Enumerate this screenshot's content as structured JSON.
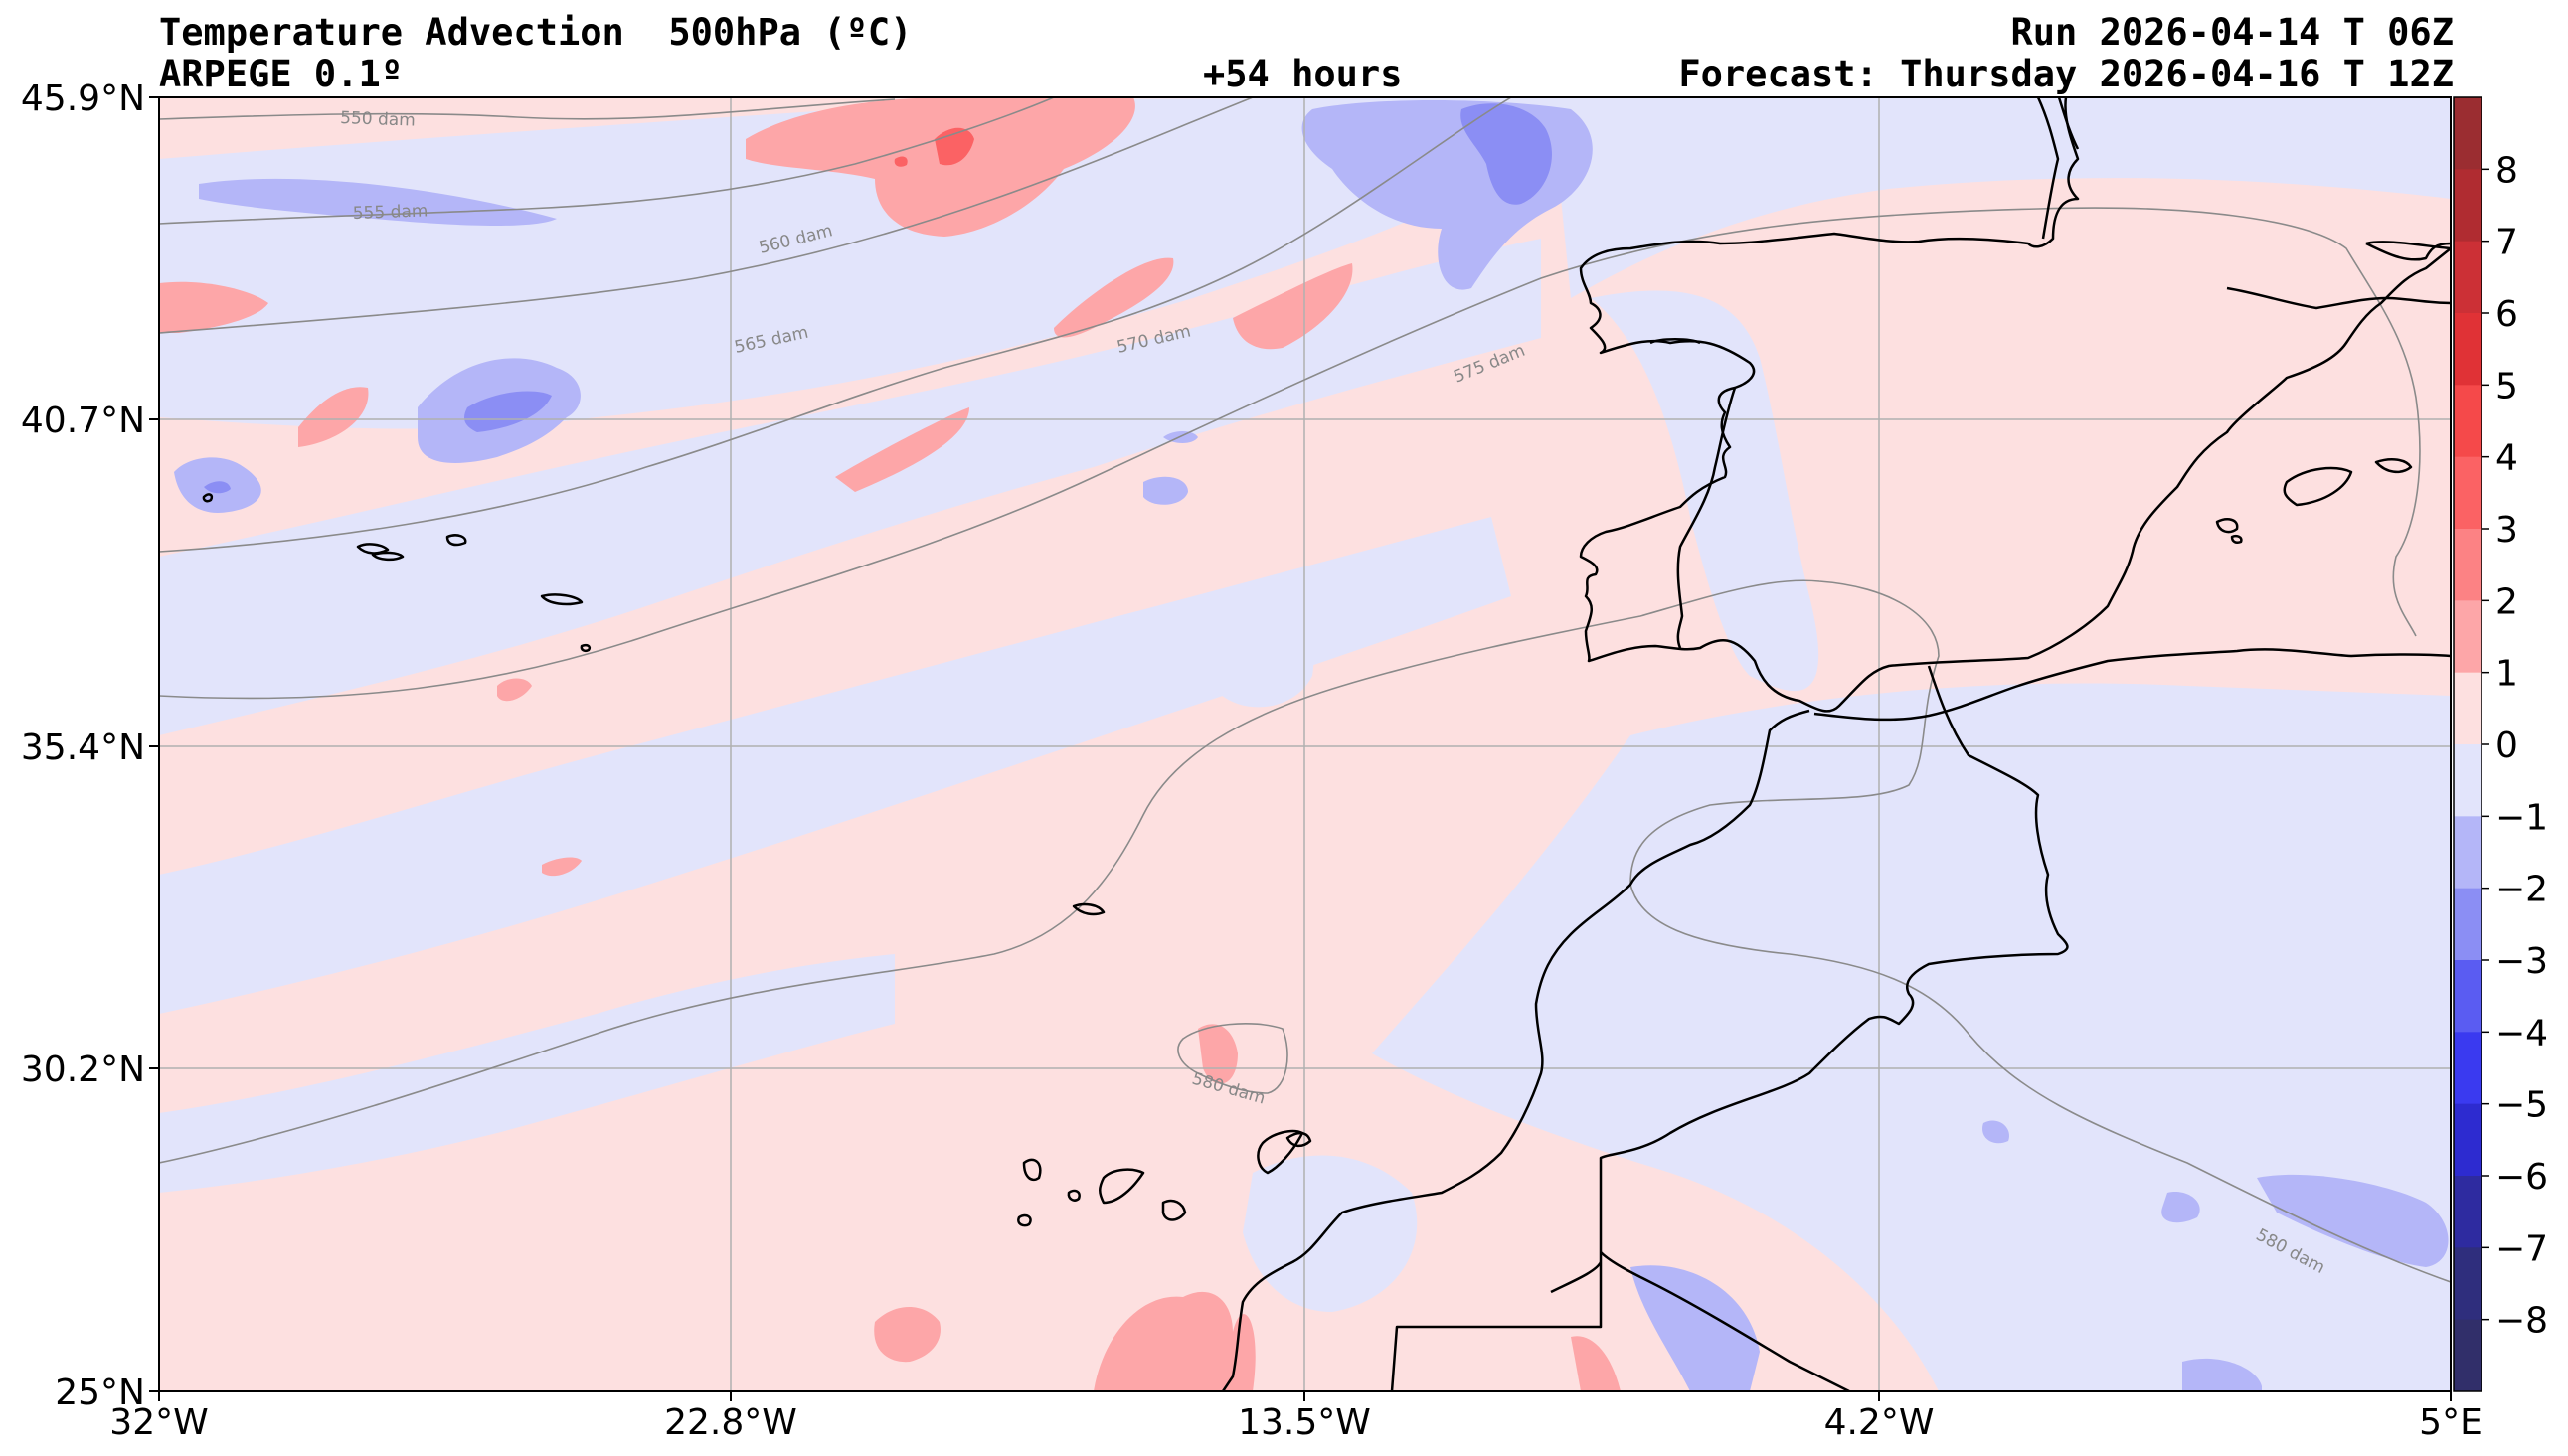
{
  "header": {
    "title": "Temperature Advection  500hPa (ºC)",
    "model": "ARPEGE 0.1º",
    "lead_time": "+54 hours",
    "run": "Run 2026-04-14 T 06Z",
    "forecast": "Forecast: Thursday 2026-04-16 T 12Z"
  },
  "axes": {
    "lat_labels": [
      "45.9°N",
      "40.7°N",
      "35.4°N",
      "30.2°N",
      "25°N"
    ],
    "lon_labels": [
      "32°W",
      "22.8°W",
      "13.5°W",
      "4.2°W",
      "5°E"
    ]
  },
  "colorbar": {
    "ticks": [
      "8",
      "7",
      "6",
      "5",
      "4",
      "3",
      "2",
      "1",
      "0",
      "−1",
      "−2",
      "−3",
      "−4",
      "−5",
      "−6",
      "−7",
      "−8"
    ],
    "colors": [
      "#9b2d31",
      "#b02c31",
      "#cc3036",
      "#e03236",
      "#f5494a",
      "#fb6264",
      "#fc8284",
      "#fda6a8",
      "#fde0e0",
      "#e2e4fb",
      "#b4b6f8",
      "#8b8ef4",
      "#5a5cf2",
      "#3a3af0",
      "#2d2bd0",
      "#2e2ba0",
      "#2f2e7d",
      "#312f6a"
    ]
  },
  "contours": {
    "labels": [
      "550 dam",
      "555 dam",
      "560 dam",
      "565 dam",
      "570 dam",
      "575 dam",
      "580 dam",
      "580 dam"
    ]
  }
}
